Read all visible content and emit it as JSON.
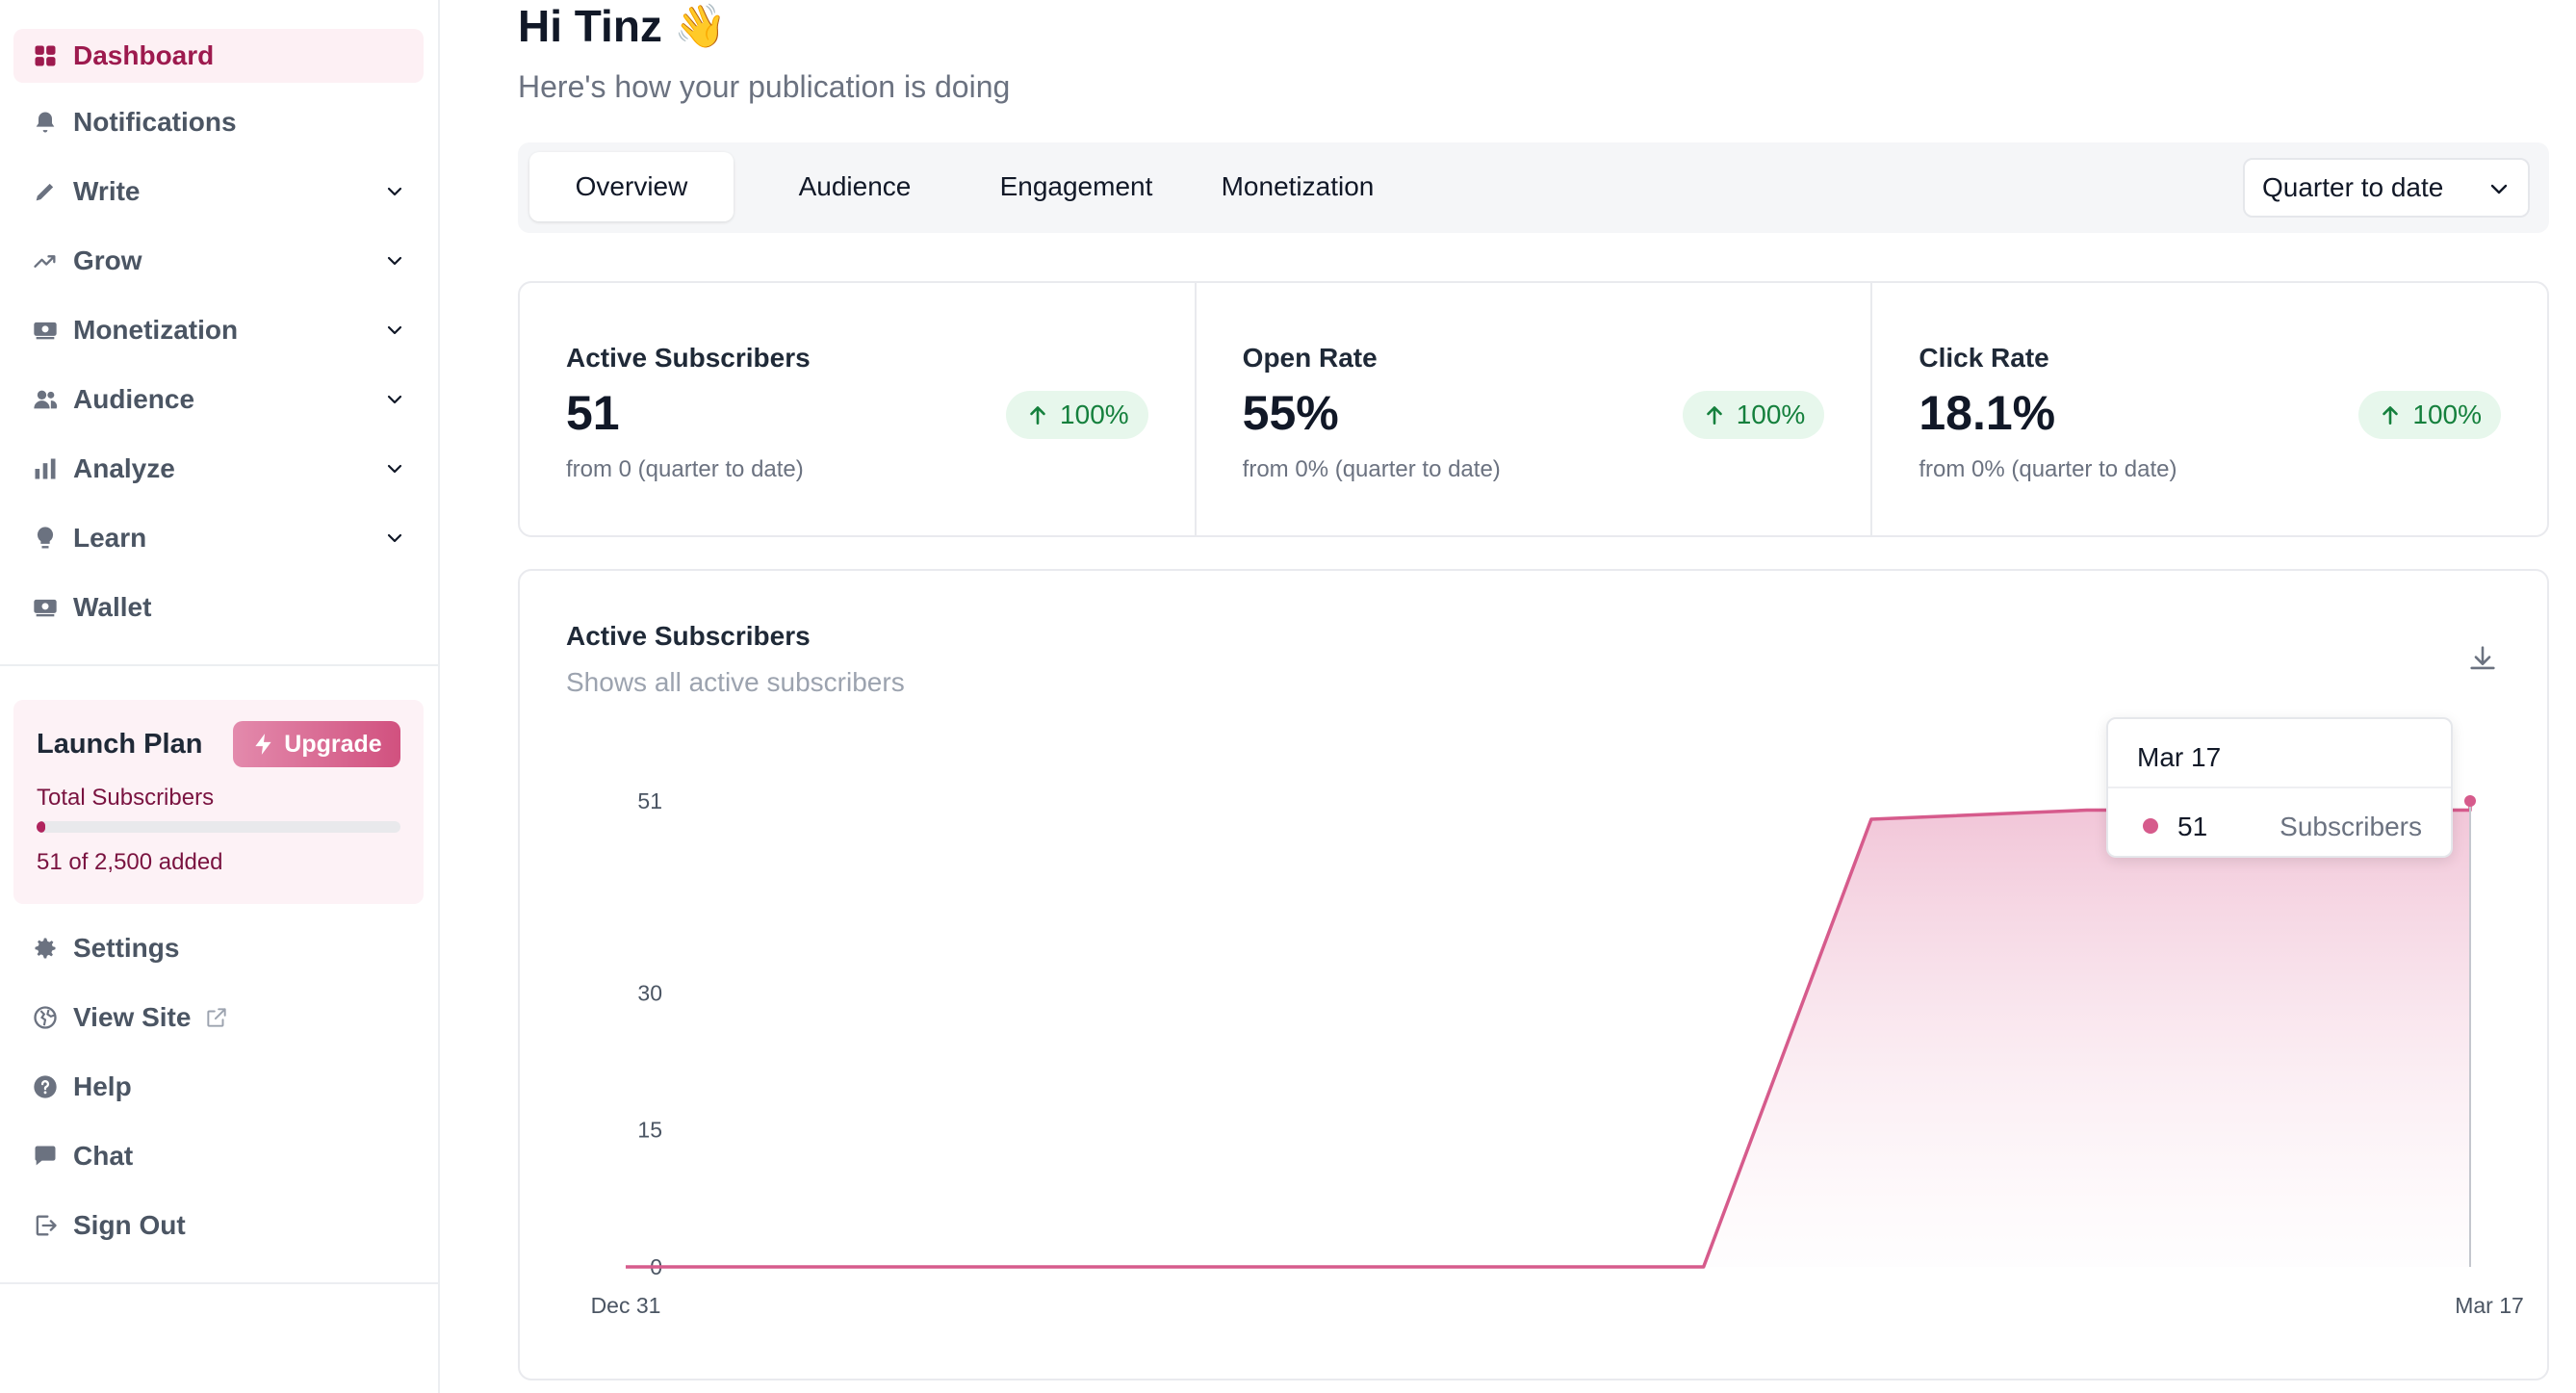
{
  "sidebar": {
    "items": [
      {
        "label": "Dashboard",
        "icon": "grid-icon",
        "active": true
      },
      {
        "label": "Notifications",
        "icon": "bell-icon"
      },
      {
        "label": "Write",
        "icon": "pencil-icon",
        "chevron": true
      },
      {
        "label": "Grow",
        "icon": "trend-icon",
        "chevron": true
      },
      {
        "label": "Monetization",
        "icon": "money-icon",
        "chevron": true
      },
      {
        "label": "Audience",
        "icon": "users-icon",
        "chevron": true
      },
      {
        "label": "Analyze",
        "icon": "bar-chart-icon",
        "chevron": true
      },
      {
        "label": "Learn",
        "icon": "lightbulb-icon",
        "chevron": true
      },
      {
        "label": "Wallet",
        "icon": "wallet-icon"
      }
    ],
    "plan": {
      "title": "Launch Plan",
      "upgrade_label": "Upgrade",
      "total_label": "Total Subscribers",
      "progress_fraction": 0.0204,
      "added_text": "51 of 2,500 added"
    },
    "bottom_items": [
      {
        "label": "Settings",
        "icon": "gear-icon"
      },
      {
        "label": "View Site",
        "icon": "globe-icon",
        "external": true
      },
      {
        "label": "Help",
        "icon": "help-icon"
      },
      {
        "label": "Chat",
        "icon": "chat-icon"
      },
      {
        "label": "Sign Out",
        "icon": "sign-out-icon"
      }
    ]
  },
  "header": {
    "greeting": "Hi Tinz",
    "wave": "👋",
    "subtitle": "Here's how your publication is doing"
  },
  "tabs": [
    {
      "label": "Overview",
      "active": true
    },
    {
      "label": "Audience"
    },
    {
      "label": "Engagement"
    },
    {
      "label": "Monetization"
    }
  ],
  "period": "Quarter to date",
  "stats": [
    {
      "title": "Active Subscribers",
      "value": "51",
      "badge": "100%",
      "sub": "from 0 (quarter to date)"
    },
    {
      "title": "Open Rate",
      "value": "55%",
      "badge": "100%",
      "sub": "from 0% (quarter to date)"
    },
    {
      "title": "Click Rate",
      "value": "18.1%",
      "badge": "100%",
      "sub": "from 0% (quarter to date)"
    }
  ],
  "chart": {
    "title": "Active Subscribers",
    "subtitle": "Shows all active subscribers",
    "tooltip": {
      "date": "Mar 17",
      "value": "51",
      "series": "Subscribers"
    }
  },
  "colors": {
    "accent": "#d65b8c",
    "accent_dark": "#9d1a4e",
    "positive": "#15803d",
    "positive_bg": "#e7f7ec"
  },
  "chart_data": {
    "type": "area",
    "title": "Active Subscribers",
    "subtitle": "Shows all active subscribers",
    "x_tick_labels": [
      "Dec 31",
      "Mar 17"
    ],
    "y_ticks": [
      0,
      15,
      30,
      51
    ],
    "ylim": [
      0,
      51
    ],
    "series": [
      {
        "name": "Subscribers",
        "points": [
          {
            "x": "Dec 31",
            "y": 0
          },
          {
            "x": "Feb 14",
            "y": 0
          },
          {
            "x": "Feb 21",
            "y": 49
          },
          {
            "x": "Mar 1",
            "y": 50
          },
          {
            "x": "Mar 17",
            "y": 50
          },
          {
            "x": "Mar 17",
            "y": 51
          }
        ]
      }
    ]
  }
}
